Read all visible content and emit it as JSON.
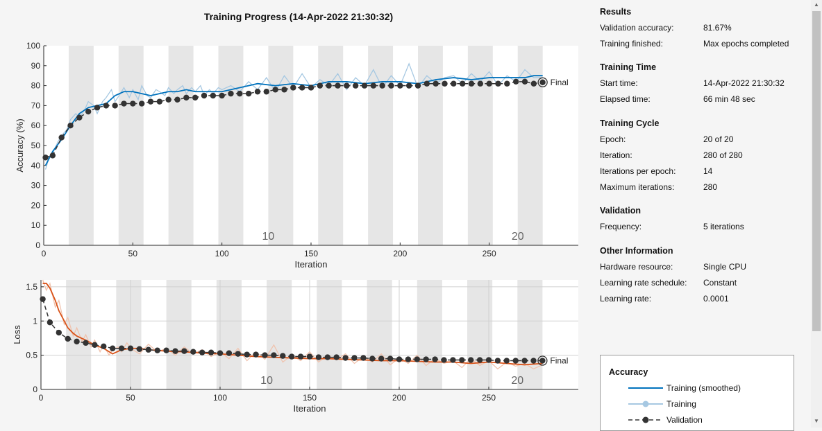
{
  "title": "Training Progress (14-Apr-2022 21:30:32)",
  "colors": {
    "training_smoothed_acc": "#0072bd",
    "training_raw_acc": "#a6c8e2",
    "training_smoothed_loss": "#d95319",
    "training_raw_loss": "#f0c3ae",
    "validation": "#333333",
    "epoch_band": "#e6e6e6"
  },
  "results": {
    "sections": [
      {
        "title": "Results",
        "rows": [
          {
            "label": "Validation accuracy:",
            "value": "81.67%"
          },
          {
            "label": "Training finished:",
            "value": "Max epochs completed"
          }
        ]
      },
      {
        "title": "Training Time",
        "rows": [
          {
            "label": "Start time:",
            "value": "14-Apr-2022 21:30:32"
          },
          {
            "label": "Elapsed time:",
            "value": "66 min 48 sec"
          }
        ]
      },
      {
        "title": "Training Cycle",
        "rows": [
          {
            "label": "Epoch:",
            "value": "20 of 20"
          },
          {
            "label": "Iteration:",
            "value": "280 of 280"
          },
          {
            "label": "Iterations per epoch:",
            "value": "14"
          },
          {
            "label": "Maximum iterations:",
            "value": "280"
          }
        ]
      },
      {
        "title": "Validation",
        "rows": [
          {
            "label": "Frequency:",
            "value": "5 iterations"
          }
        ]
      },
      {
        "title": "Other Information",
        "rows": [
          {
            "label": "Hardware resource:",
            "value": "Single CPU"
          },
          {
            "label": "Learning rate schedule:",
            "value": "Constant"
          },
          {
            "label": "Learning rate:",
            "value": "0.0001"
          }
        ]
      }
    ]
  },
  "legend": {
    "title": "Accuracy",
    "items": [
      "Training (smoothed)",
      "Training",
      "Validation"
    ]
  },
  "chart_data": [
    {
      "type": "line",
      "xlabel": "Iteration",
      "ylabel": "Accuracy (%)",
      "xlim": [
        0,
        300
      ],
      "ylim": [
        0,
        100
      ],
      "xticks": [
        0,
        50,
        100,
        150,
        200,
        250
      ],
      "yticks": [
        0,
        10,
        20,
        30,
        40,
        50,
        60,
        70,
        80,
        90,
        100
      ],
      "grid": false,
      "epoch_bands": true,
      "iterations_per_epoch": 14,
      "epoch_labels": [
        {
          "epoch": "10",
          "x": 126
        },
        {
          "epoch": "20",
          "x": 266
        }
      ],
      "final_label": "Final",
      "series": [
        {
          "name": "Training (smoothed)",
          "x": [
            1,
            5,
            10,
            15,
            20,
            25,
            30,
            35,
            40,
            45,
            50,
            55,
            60,
            65,
            70,
            75,
            80,
            85,
            90,
            95,
            100,
            110,
            120,
            130,
            140,
            150,
            160,
            170,
            180,
            190,
            200,
            210,
            220,
            230,
            240,
            250,
            260,
            270,
            275,
            280
          ],
          "values": [
            40,
            47,
            53,
            60,
            66,
            69,
            70,
            71,
            75,
            77,
            77,
            76,
            75,
            76,
            77,
            77,
            78,
            77,
            77,
            77,
            77,
            79,
            81,
            80,
            81,
            80,
            82,
            82,
            81,
            82,
            82,
            81,
            83,
            84,
            83,
            84,
            84,
            84,
            85,
            85
          ]
        },
        {
          "name": "Training",
          "x": [
            1,
            3,
            5,
            8,
            10,
            13,
            15,
            18,
            20,
            23,
            25,
            28,
            30,
            33,
            35,
            38,
            40,
            43,
            45,
            48,
            50,
            53,
            55,
            58,
            60,
            63,
            65,
            68,
            70,
            73,
            75,
            78,
            80,
            83,
            85,
            88,
            90,
            93,
            95,
            98,
            100,
            105,
            110,
            115,
            120,
            125,
            130,
            135,
            140,
            145,
            150,
            155,
            160,
            165,
            170,
            175,
            180,
            185,
            190,
            195,
            200,
            205,
            210,
            215,
            220,
            225,
            230,
            235,
            240,
            245,
            250,
            255,
            260,
            265,
            270,
            275,
            280
          ],
          "values": [
            38,
            44,
            46,
            52,
            55,
            58,
            63,
            66,
            64,
            68,
            72,
            70,
            66,
            72,
            74,
            78,
            72,
            76,
            79,
            74,
            78,
            73,
            80,
            75,
            74,
            78,
            77,
            75,
            79,
            76,
            78,
            80,
            76,
            79,
            77,
            80,
            75,
            78,
            76,
            79,
            78,
            80,
            77,
            82,
            78,
            84,
            77,
            85,
            79,
            86,
            79,
            83,
            80,
            86,
            78,
            84,
            80,
            88,
            79,
            85,
            80,
            91,
            79,
            85,
            81,
            84,
            85,
            81,
            86,
            82,
            87,
            80,
            85,
            82,
            88,
            84,
            84
          ]
        },
        {
          "name": "Validation",
          "x": [
            1,
            5,
            10,
            15,
            20,
            25,
            30,
            35,
            40,
            45,
            50,
            55,
            60,
            65,
            70,
            75,
            80,
            85,
            90,
            95,
            100,
            105,
            110,
            115,
            120,
            125,
            130,
            135,
            140,
            145,
            150,
            155,
            160,
            165,
            170,
            175,
            180,
            185,
            190,
            195,
            200,
            205,
            210,
            215,
            220,
            225,
            230,
            235,
            240,
            245,
            250,
            255,
            260,
            265,
            270,
            275,
            280
          ],
          "values": [
            44,
            45,
            54,
            60,
            64,
            67,
            69,
            70,
            70,
            71,
            71,
            71,
            72,
            72,
            73,
            73,
            74,
            74,
            75,
            75,
            75,
            76,
            76,
            76,
            77,
            77,
            78,
            78,
            79,
            79,
            79,
            80,
            80,
            80,
            80,
            80,
            80,
            80,
            80,
            80,
            80,
            80,
            80,
            81,
            81,
            81,
            81,
            81,
            81,
            81,
            81,
            81,
            81,
            82,
            82,
            81,
            81.67
          ]
        }
      ]
    },
    {
      "type": "line",
      "xlabel": "Iteration",
      "ylabel": "Loss",
      "xlim": [
        0,
        300
      ],
      "ylim": [
        0,
        1.6
      ],
      "xticks": [
        0,
        50,
        100,
        150,
        200,
        250
      ],
      "yticks": [
        0,
        0.5,
        1,
        1.5
      ],
      "ytick_labels": [
        "0",
        "0.5",
        "1",
        "1.5"
      ],
      "grid": true,
      "epoch_bands": true,
      "iterations_per_epoch": 14,
      "epoch_labels": [
        {
          "epoch": "10",
          "x": 126
        },
        {
          "epoch": "20",
          "x": 266
        }
      ],
      "final_label": "Final",
      "series": [
        {
          "name": "Training (smoothed)",
          "x": [
            1,
            3,
            5,
            8,
            10,
            13,
            15,
            18,
            20,
            25,
            30,
            35,
            40,
            45,
            50,
            55,
            60,
            70,
            80,
            90,
            100,
            110,
            120,
            130,
            140,
            150,
            160,
            170,
            180,
            190,
            200,
            210,
            220,
            230,
            240,
            250,
            260,
            270,
            280
          ],
          "values": [
            1.55,
            1.55,
            1.48,
            1.3,
            1.15,
            1.0,
            0.9,
            0.82,
            0.78,
            0.72,
            0.65,
            0.6,
            0.52,
            0.58,
            0.6,
            0.6,
            0.58,
            0.56,
            0.55,
            0.53,
            0.52,
            0.5,
            0.48,
            0.47,
            0.46,
            0.45,
            0.45,
            0.44,
            0.43,
            0.42,
            0.42,
            0.41,
            0.4,
            0.4,
            0.38,
            0.4,
            0.38,
            0.36,
            0.38
          ]
        },
        {
          "name": "Training",
          "x": [
            1,
            3,
            5,
            8,
            10,
            13,
            15,
            18,
            20,
            23,
            25,
            28,
            30,
            33,
            35,
            38,
            40,
            43,
            45,
            48,
            50,
            55,
            60,
            65,
            70,
            75,
            80,
            85,
            90,
            95,
            100,
            105,
            110,
            115,
            120,
            125,
            130,
            135,
            140,
            145,
            150,
            155,
            160,
            165,
            170,
            175,
            180,
            185,
            190,
            195,
            200,
            205,
            210,
            215,
            220,
            225,
            230,
            235,
            240,
            245,
            250,
            255,
            260,
            265,
            270,
            275,
            280
          ],
          "values": [
            1.6,
            1.45,
            1.55,
            1.2,
            1.3,
            0.95,
            1.05,
            0.78,
            0.9,
            0.7,
            0.8,
            0.62,
            0.72,
            0.55,
            0.65,
            0.5,
            0.58,
            0.62,
            0.55,
            0.68,
            0.6,
            0.52,
            0.66,
            0.55,
            0.6,
            0.5,
            0.62,
            0.52,
            0.58,
            0.48,
            0.55,
            0.45,
            0.6,
            0.42,
            0.55,
            0.44,
            0.65,
            0.4,
            0.5,
            0.42,
            0.55,
            0.4,
            0.5,
            0.43,
            0.52,
            0.38,
            0.48,
            0.4,
            0.52,
            0.36,
            0.46,
            0.38,
            0.5,
            0.35,
            0.45,
            0.38,
            0.42,
            0.32,
            0.45,
            0.35,
            0.42,
            0.3,
            0.4,
            0.34,
            0.38,
            0.3,
            0.36
          ]
        },
        {
          "name": "Validation",
          "x": [
            1,
            5,
            10,
            15,
            20,
            25,
            30,
            35,
            40,
            45,
            50,
            55,
            60,
            65,
            70,
            75,
            80,
            85,
            90,
            95,
            100,
            105,
            110,
            115,
            120,
            125,
            130,
            135,
            140,
            145,
            150,
            155,
            160,
            165,
            170,
            175,
            180,
            185,
            190,
            195,
            200,
            205,
            210,
            215,
            220,
            225,
            230,
            235,
            240,
            245,
            250,
            255,
            260,
            265,
            270,
            275,
            280
          ],
          "values": [
            1.32,
            0.98,
            0.83,
            0.74,
            0.7,
            0.68,
            0.65,
            0.63,
            0.6,
            0.6,
            0.6,
            0.59,
            0.58,
            0.57,
            0.57,
            0.56,
            0.56,
            0.55,
            0.54,
            0.54,
            0.53,
            0.53,
            0.52,
            0.51,
            0.51,
            0.5,
            0.5,
            0.49,
            0.48,
            0.48,
            0.48,
            0.47,
            0.47,
            0.47,
            0.46,
            0.46,
            0.46,
            0.45,
            0.45,
            0.45,
            0.44,
            0.44,
            0.44,
            0.44,
            0.44,
            0.43,
            0.43,
            0.43,
            0.43,
            0.43,
            0.43,
            0.42,
            0.42,
            0.42,
            0.42,
            0.42,
            0.42
          ]
        }
      ]
    }
  ]
}
